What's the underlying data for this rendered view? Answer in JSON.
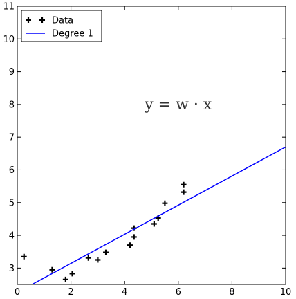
{
  "chart_data": {
    "type": "scatter",
    "title": "",
    "xlabel": "",
    "ylabel": "",
    "xlim": [
      0,
      10
    ],
    "ylim": [
      2.5,
      11
    ],
    "xticks": [
      "0",
      "2",
      "4",
      "6",
      "8",
      "10"
    ],
    "yticks": [
      "3",
      "4",
      "5",
      "6",
      "7",
      "8",
      "9",
      "10",
      "11"
    ],
    "grid": false,
    "legend_position": "top-left",
    "series": [
      {
        "name": "Data",
        "kind": "scatter",
        "marker": "plus",
        "color": "#000000",
        "points": [
          [
            0.25,
            3.35
          ],
          [
            1.3,
            2.95
          ],
          [
            1.8,
            2.65
          ],
          [
            2.05,
            2.83
          ],
          [
            2.65,
            3.31
          ],
          [
            3.0,
            3.25
          ],
          [
            3.3,
            3.48
          ],
          [
            4.2,
            3.7
          ],
          [
            4.35,
            3.95
          ],
          [
            4.35,
            4.22
          ],
          [
            5.1,
            4.35
          ],
          [
            5.25,
            4.53
          ],
          [
            5.5,
            4.98
          ],
          [
            6.2,
            5.32
          ],
          [
            6.2,
            5.55
          ]
        ]
      },
      {
        "name": "Degree 1",
        "kind": "line",
        "color": "#0000ff",
        "points": [
          [
            0.55,
            2.5
          ],
          [
            10,
            6.7
          ]
        ]
      }
    ],
    "annotation": {
      "text": "y = w · x",
      "x": 6.0,
      "y": 8.0
    }
  }
}
